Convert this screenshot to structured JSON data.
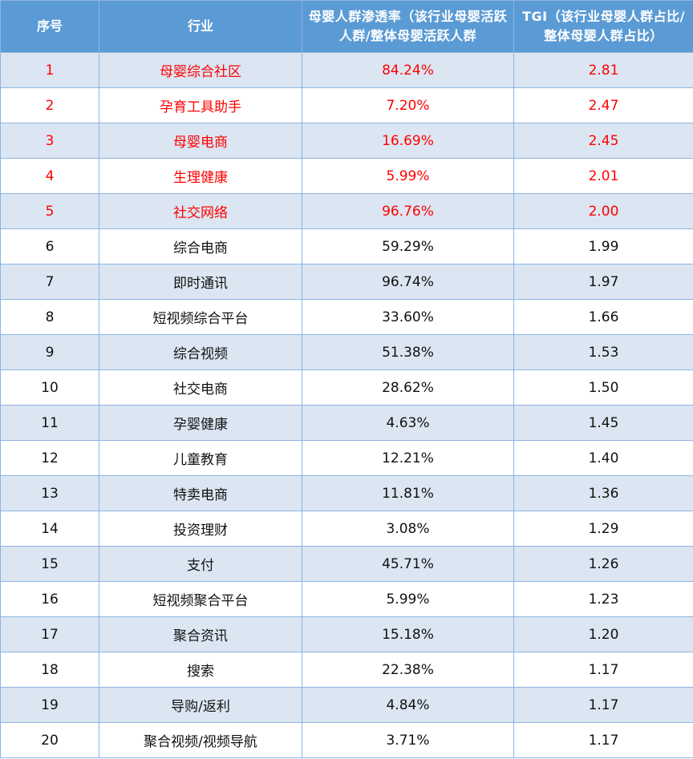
{
  "header": {
    "col_rank": "序号",
    "col_industry": "行业",
    "col_penetration": "母婴人群渗透率（该行业母婴活跃人群/整体母婴活跃人群",
    "col_tgi": "TGI（该行业母婴人群占比/整体母婴人群占比）"
  },
  "rows": [
    {
      "rank": "1",
      "industry": "母婴综合社区",
      "penetration": "84.24%",
      "tgi": "2.81",
      "highlight": true
    },
    {
      "rank": "2",
      "industry": "孕育工具助手",
      "penetration": "7.20%",
      "tgi": "2.47",
      "highlight": true
    },
    {
      "rank": "3",
      "industry": "母婴电商",
      "penetration": "16.69%",
      "tgi": "2.45",
      "highlight": true
    },
    {
      "rank": "4",
      "industry": "生理健康",
      "penetration": "5.99%",
      "tgi": "2.01",
      "highlight": true
    },
    {
      "rank": "5",
      "industry": "社交网络",
      "penetration": "96.76%",
      "tgi": "2.00",
      "highlight": true
    },
    {
      "rank": "6",
      "industry": "综合电商",
      "penetration": "59.29%",
      "tgi": "1.99",
      "highlight": false
    },
    {
      "rank": "7",
      "industry": "即时通讯",
      "penetration": "96.74%",
      "tgi": "1.97",
      "highlight": false
    },
    {
      "rank": "8",
      "industry": "短视频综合平台",
      "penetration": "33.60%",
      "tgi": "1.66",
      "highlight": false
    },
    {
      "rank": "9",
      "industry": "综合视频",
      "penetration": "51.38%",
      "tgi": "1.53",
      "highlight": false
    },
    {
      "rank": "10",
      "industry": "社交电商",
      "penetration": "28.62%",
      "tgi": "1.50",
      "highlight": false
    },
    {
      "rank": "11",
      "industry": "孕婴健康",
      "penetration": "4.63%",
      "tgi": "1.45",
      "highlight": false
    },
    {
      "rank": "12",
      "industry": "儿童教育",
      "penetration": "12.21%",
      "tgi": "1.40",
      "highlight": false
    },
    {
      "rank": "13",
      "industry": "特卖电商",
      "penetration": "11.81%",
      "tgi": "1.36",
      "highlight": false
    },
    {
      "rank": "14",
      "industry": "投资理财",
      "penetration": "3.08%",
      "tgi": "1.29",
      "highlight": false
    },
    {
      "rank": "15",
      "industry": "支付",
      "penetration": "45.71%",
      "tgi": "1.26",
      "highlight": false
    },
    {
      "rank": "16",
      "industry": "短视频聚合平台",
      "penetration": "5.99%",
      "tgi": "1.23",
      "highlight": false
    },
    {
      "rank": "17",
      "industry": "聚合资讯",
      "penetration": "15.18%",
      "tgi": "1.20",
      "highlight": false
    },
    {
      "rank": "18",
      "industry": "搜索",
      "penetration": "22.38%",
      "tgi": "1.17",
      "highlight": false
    },
    {
      "rank": "19",
      "industry": "导购/返利",
      "penetration": "4.84%",
      "tgi": "1.17",
      "highlight": false
    },
    {
      "rank": "20",
      "industry": "聚合视频/视频导航",
      "penetration": "3.71%",
      "tgi": "1.17",
      "highlight": false
    }
  ],
  "colors": {
    "header_bg": "#5b9bd5",
    "stripe_bg": "#dbe6f2",
    "highlight_text": "#ff0000",
    "border": "#8db3e2"
  }
}
